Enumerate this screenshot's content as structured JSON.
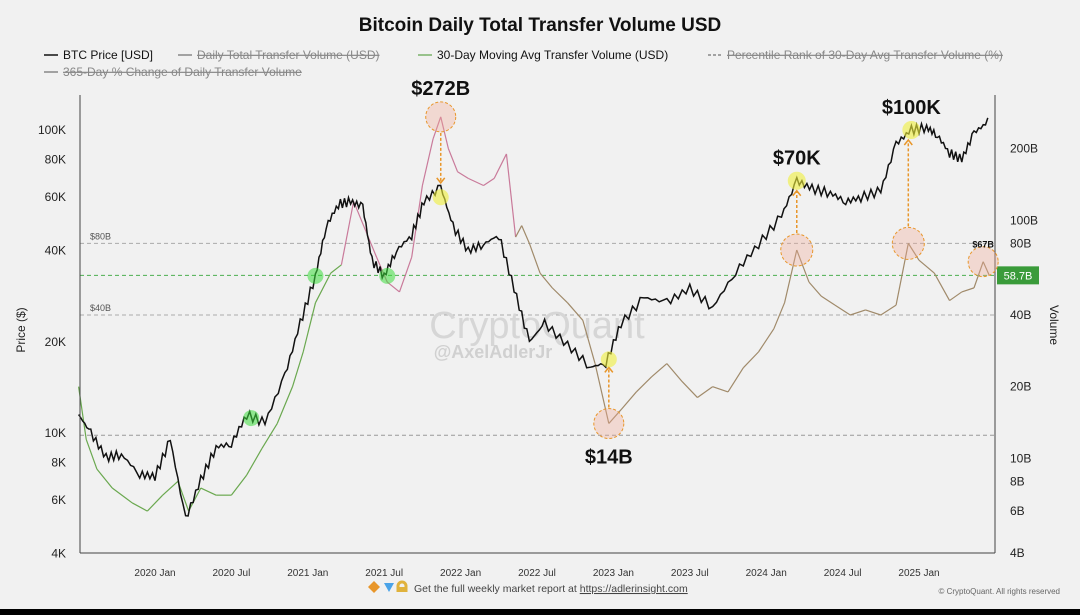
{
  "chart_data": {
    "type": "line",
    "title": "Bitcoin Daily Total Transfer Volume USD",
    "legend": [
      {
        "label": "BTC Price [USD]",
        "color": "#111111",
        "struck": false
      },
      {
        "label": "Daily Total Transfer Volume (USD)",
        "color": "#888888",
        "struck": true
      },
      {
        "label": "30-Day Moving Avg Transfer Volume (USD)",
        "color": "#7bb26a",
        "struck": false
      },
      {
        "label": "Percentile Rank of 30-Day Avg Transfer Volume (%)",
        "color": "#888888",
        "struck": true
      },
      {
        "label": "365-Day % Change of Daily Transfer Volume",
        "color": "#888888",
        "struck": true
      }
    ],
    "ylabel_left": "Price ($)",
    "ylabel_right": "Volume",
    "left_ticks": [
      {
        "v": 4000,
        "label": "4K"
      },
      {
        "v": 6000,
        "label": "6K"
      },
      {
        "v": 8000,
        "label": "8K"
      },
      {
        "v": 10000,
        "label": "10K"
      },
      {
        "v": 20000,
        "label": "20K"
      },
      {
        "v": 40000,
        "label": "40K"
      },
      {
        "v": 60000,
        "label": "60K"
      },
      {
        "v": 80000,
        "label": "80K"
      },
      {
        "v": 100000,
        "label": "100K"
      }
    ],
    "right_ticks": [
      {
        "v": 4,
        "label": "4B"
      },
      {
        "v": 6,
        "label": "6B"
      },
      {
        "v": 8,
        "label": "8B"
      },
      {
        "v": 10,
        "label": "10B"
      },
      {
        "v": 20,
        "label": "20B"
      },
      {
        "v": 40,
        "label": "40B"
      },
      {
        "v": 80,
        "label": "80B"
      },
      {
        "v": 100,
        "label": "100B"
      },
      {
        "v": 200,
        "label": "200B"
      }
    ],
    "x_ticks": [
      {
        "v": 2020.0,
        "label": "2020 Jan"
      },
      {
        "v": 2020.5,
        "label": "2020 Jul"
      },
      {
        "v": 2021.0,
        "label": "2021 Jan"
      },
      {
        "v": 2021.5,
        "label": "2021 Jul"
      },
      {
        "v": 2022.0,
        "label": "2022 Jan"
      },
      {
        "v": 2022.5,
        "label": "2022 Jul"
      },
      {
        "v": 2023.0,
        "label": "2023 Jan"
      },
      {
        "v": 2023.5,
        "label": "2023 Jul"
      },
      {
        "v": 2024.0,
        "label": "2024 Jan"
      },
      {
        "v": 2024.5,
        "label": "2024 Jul"
      },
      {
        "v": 2025.0,
        "label": "2025 Jan"
      }
    ],
    "ref_lines": [
      {
        "v": 80,
        "label": "$80B",
        "color": "#aaaaaa"
      },
      {
        "v": 40,
        "label": "$40B",
        "color": "#aaaaaa"
      },
      {
        "v": 12.5,
        "label": "",
        "color": "#999999"
      },
      {
        "v": 58.7,
        "label": "",
        "color": "#4caf50"
      }
    ],
    "current_volume_label": "58.7B",
    "btc_price": {
      "x": [
        2019.5,
        2019.58,
        2019.68,
        2019.78,
        2019.9,
        2020.0,
        2020.1,
        2020.2,
        2020.3,
        2020.4,
        2020.5,
        2020.6,
        2020.72,
        2020.85,
        2020.95,
        2021.05,
        2021.12,
        2021.2,
        2021.28,
        2021.36,
        2021.42,
        2021.5,
        2021.58,
        2021.68,
        2021.76,
        2021.87,
        2021.95,
        2022.05,
        2022.15,
        2022.25,
        2022.35,
        2022.45,
        2022.55,
        2022.7,
        2022.85,
        2022.95,
        2023.05,
        2023.2,
        2023.35,
        2023.5,
        2023.65,
        2023.8,
        2023.95,
        2024.1,
        2024.2,
        2024.3,
        2024.42,
        2024.52,
        2024.62,
        2024.75,
        2024.85,
        2024.95,
        2025.05,
        2025.12,
        2025.2,
        2025.28,
        2025.36,
        2025.45
      ],
      "y": [
        11500,
        10000,
        8300,
        8500,
        7300,
        7200,
        9500,
        5200,
        7000,
        9000,
        9200,
        11500,
        10800,
        15500,
        23000,
        33000,
        48000,
        57000,
        58000,
        56000,
        37000,
        33000,
        40000,
        45000,
        58000,
        65000,
        48000,
        40000,
        42000,
        45000,
        30000,
        20000,
        23000,
        19500,
        16500,
        17000,
        23000,
        28000,
        27000,
        30000,
        26000,
        34000,
        42000,
        52000,
        68000,
        64000,
        62000,
        58000,
        60000,
        63000,
        90000,
        100000,
        102000,
        96000,
        84000,
        80000,
        98000,
        106000
      ]
    },
    "volume_30d_ma_billion": {
      "x": [
        2019.5,
        2019.55,
        2019.62,
        2019.72,
        2019.85,
        2019.95,
        2020.05,
        2020.15,
        2020.22,
        2020.3,
        2020.4,
        2020.5,
        2020.6,
        2020.7,
        2020.8,
        2020.9,
        2020.97,
        2021.05,
        2021.15,
        2021.22,
        2021.3,
        2021.38,
        2021.45,
        2021.52,
        2021.6,
        2021.68,
        2021.75,
        2021.82,
        2021.87,
        2021.92,
        2021.98,
        2022.05,
        2022.15,
        2022.22,
        2022.3,
        2022.36,
        2022.4,
        2022.45,
        2022.52,
        2022.6,
        2022.7,
        2022.8,
        2022.88,
        2022.97,
        2023.05,
        2023.15,
        2023.25,
        2023.35,
        2023.45,
        2023.55,
        2023.65,
        2023.75,
        2023.85,
        2023.95,
        2024.05,
        2024.12,
        2024.2,
        2024.28,
        2024.36,
        2024.45,
        2024.55,
        2024.65,
        2024.75,
        2024.85,
        2024.93,
        2025.0,
        2025.1,
        2025.2,
        2025.28,
        2025.36,
        2025.42,
        2025.46
      ],
      "y": [
        20,
        12,
        9,
        7.5,
        6.5,
        6,
        7,
        8,
        6,
        7.5,
        7,
        7,
        8.5,
        11,
        14,
        20,
        28,
        45,
        60,
        65,
        120,
        90,
        70,
        55,
        50,
        70,
        140,
        220,
        272,
        200,
        160,
        150,
        140,
        150,
        190,
        85,
        95,
        80,
        60,
        52,
        45,
        38,
        25,
        14,
        16,
        19,
        22,
        25,
        21,
        18,
        20,
        19,
        24,
        28,
        35,
        45,
        75,
        55,
        48,
        44,
        40,
        42,
        40,
        44,
        80,
        68,
        60,
        46,
        50,
        52,
        67,
        58.7
      ]
    },
    "annotations": [
      {
        "label": "$272B",
        "x": 2021.87,
        "series": "volume",
        "v": 272
      },
      {
        "label": "$70K",
        "x": 2024.2,
        "series": "price",
        "v": 68000
      },
      {
        "label": "$100K",
        "x": 2024.95,
        "series": "price",
        "v": 100000
      },
      {
        "label": "$14B",
        "x": 2022.97,
        "series": "volume",
        "v": 14
      },
      {
        "label": "$67B",
        "x": 2025.42,
        "series": "volume",
        "v": 67
      }
    ],
    "watermark": {
      "brand": "CryptoQuant",
      "handle": "@AxelAdlerJr"
    }
  },
  "footer": {
    "icons": [
      "orange-diamond-icon",
      "blue-diamond-icon",
      "hands-icon"
    ],
    "text": "Get the full weekly market report at ",
    "link": "https://adlerinsight.com",
    "copyright": "© CryptoQuant. All rights reserved"
  }
}
